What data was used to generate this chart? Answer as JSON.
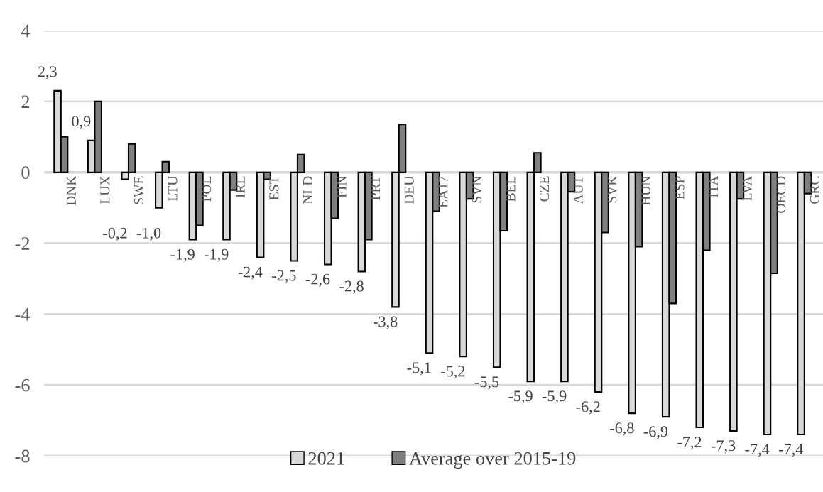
{
  "chart_data": {
    "type": "bar",
    "categories": [
      "DNK",
      "LUX",
      "SWE",
      "LTU",
      "POL",
      "IRL",
      "EST",
      "NLD",
      "FIN",
      "PRT",
      "DEU",
      "EA17",
      "SVN",
      "BEL",
      "CZE",
      "AUT",
      "SVK",
      "HUN",
      "ESP",
      "ITA",
      "LVA",
      "OECD",
      "GRC"
    ],
    "series": [
      {
        "name": "2021",
        "color": "#d9d9d9",
        "values": [
          2.3,
          0.9,
          -0.2,
          -1.0,
          -1.9,
          -1.9,
          -2.4,
          -2.5,
          -2.6,
          -2.8,
          -3.8,
          -5.1,
          -5.2,
          -5.5,
          -5.9,
          -5.9,
          -6.2,
          -6.8,
          -6.9,
          -7.2,
          -7.3,
          -7.4,
          -7.4
        ],
        "value_labels": [
          "2,3",
          "0,9",
          "-0,2",
          "-1,0",
          "-1,9",
          "-1,9",
          "-2,4",
          "-2,5",
          "-2,6",
          "-2,8",
          "-3,8",
          "-5,1",
          "-5,2",
          "-5,5",
          "-5,9",
          "-5,9",
          "-6,2",
          "-6,8",
          "-6,9",
          "-7,2",
          "-7,3",
          "-7,4",
          "-7,4"
        ]
      },
      {
        "name": "Average over 2015-19",
        "color": "#7f7f7f",
        "values": [
          1.0,
          2.0,
          0.8,
          0.3,
          -1.5,
          -0.5,
          -0.2,
          0.5,
          -1.3,
          -1.9,
          1.35,
          -1.1,
          -0.75,
          -1.65,
          0.55,
          -0.55,
          -1.7,
          -2.1,
          -3.7,
          -2.2,
          -0.75,
          -2.85,
          -0.6
        ]
      }
    ],
    "ylim": [
      -8,
      4
    ],
    "yticks": [
      4,
      2,
      0,
      {
        "value": -2,
        "label": "-2"
      },
      {
        "value": -4,
        "label": "-4"
      },
      {
        "value": -6,
        "label": "-6"
      },
      {
        "value": -8,
        "label": "-8"
      }
    ],
    "grid": "y",
    "legend": "bottom",
    "tick_labels": "y"
  }
}
